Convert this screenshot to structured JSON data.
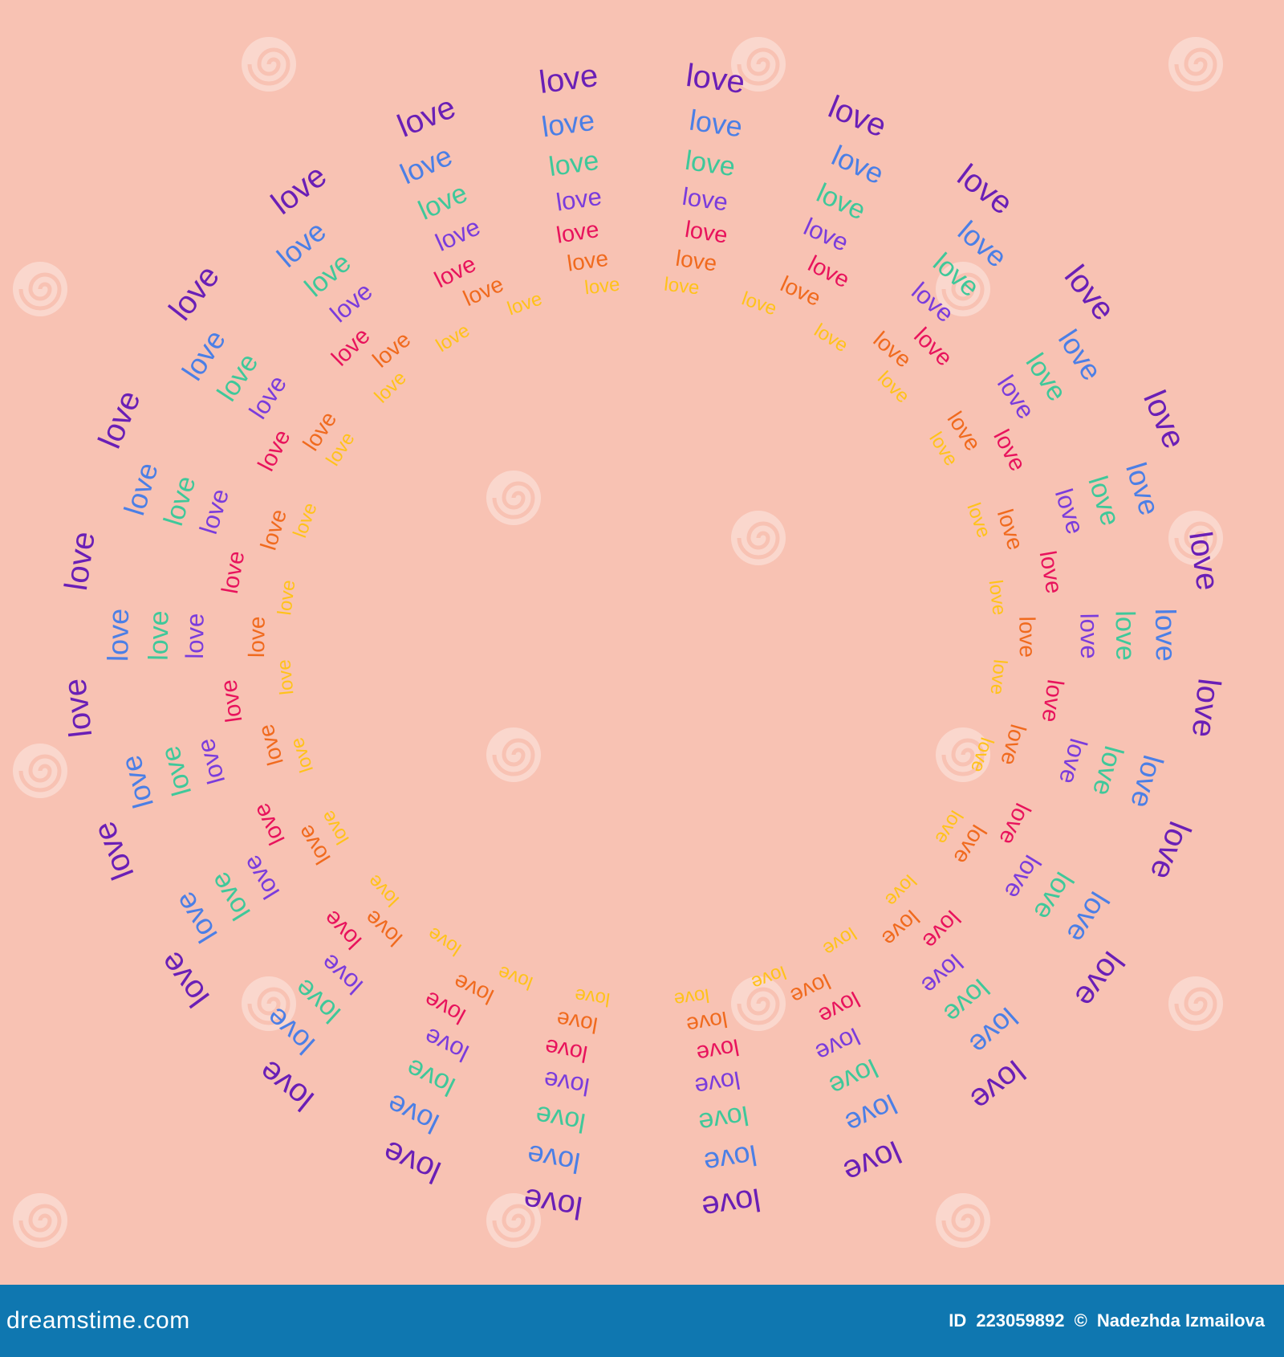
{
  "artwork": {
    "word": "love",
    "background": "#f8c2b3",
    "rings": [
      {
        "color": "#6a1fb6",
        "count": 24
      },
      {
        "color": "#4b7fe6",
        "count": 22
      },
      {
        "color": "#3fc89a",
        "count": 22
      },
      {
        "color": "#7a3cdc",
        "count": 22
      },
      {
        "color": "#e8135c",
        "count": 20
      },
      {
        "color": "#f06a1e",
        "count": 22
      },
      {
        "color": "#ffc21a",
        "count": 28
      }
    ],
    "watermark": {
      "text": "dreamstime",
      "icon": "spiral-watermark-icon"
    }
  },
  "footer": {
    "logo": "dreamstime.com",
    "id_label": "ID",
    "id_value": "223059892",
    "copyright": "©",
    "author": "Nadezhda Izmailova",
    "background": "#0f77b0"
  }
}
